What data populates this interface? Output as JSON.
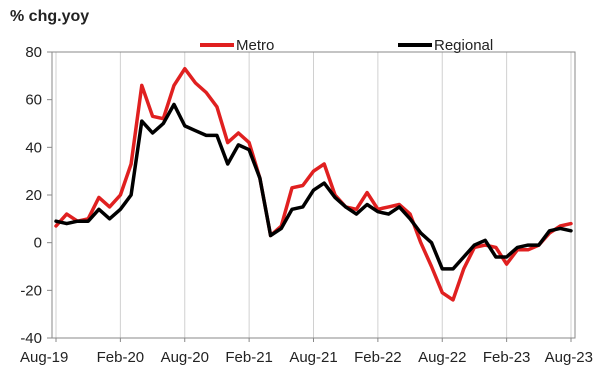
{
  "chart_data": {
    "type": "line",
    "ylabel": "% chg.yoy",
    "ylim": [
      -40,
      80
    ],
    "yticks": [
      -40,
      -20,
      0,
      20,
      40,
      60,
      80
    ],
    "xtick_labels": [
      "Aug-19",
      "Feb-20",
      "Aug-20",
      "Feb-21",
      "Aug-21",
      "Feb-22",
      "Aug-22",
      "Feb-23",
      "Aug-23"
    ],
    "x": [
      "2019-08",
      "2019-09",
      "2019-10",
      "2019-11",
      "2019-12",
      "2020-01",
      "2020-02",
      "2020-03",
      "2020-04",
      "2020-05",
      "2020-06",
      "2020-07",
      "2020-08",
      "2020-09",
      "2020-10",
      "2020-11",
      "2020-12",
      "2021-01",
      "2021-02",
      "2021-03",
      "2021-04",
      "2021-05",
      "2021-06",
      "2021-07",
      "2021-08",
      "2021-09",
      "2021-10",
      "2021-11",
      "2021-12",
      "2022-01",
      "2022-02",
      "2022-03",
      "2022-04",
      "2022-05",
      "2022-06",
      "2022-07",
      "2022-08",
      "2022-09",
      "2022-10",
      "2022-11",
      "2022-12",
      "2023-01",
      "2023-02",
      "2023-03",
      "2023-04",
      "2023-05",
      "2023-06",
      "2023-07",
      "2023-08"
    ],
    "grid": "vertical",
    "legend_position": "top",
    "series": [
      {
        "name": "Metro",
        "color": "#e02020",
        "values": [
          7,
          12,
          9,
          10,
          19,
          15,
          20,
          33,
          66,
          53,
          52,
          66,
          73,
          67,
          63,
          57,
          42,
          46,
          42,
          27,
          3,
          7,
          23,
          24,
          30,
          33,
          20,
          15,
          14,
          21,
          14,
          15,
          16,
          12,
          0,
          -10,
          -21,
          -24,
          -11,
          -2,
          -1,
          -2,
          -9,
          -3,
          -3,
          -1,
          4,
          7,
          8
        ]
      },
      {
        "name": "Regional",
        "color": "#000000",
        "values": [
          9,
          8,
          9,
          9,
          14,
          10,
          14,
          20,
          51,
          46,
          50,
          58,
          49,
          47,
          45,
          45,
          33,
          41,
          39,
          27,
          3,
          6,
          14,
          15,
          22,
          25,
          19,
          15,
          12,
          16,
          13,
          12,
          15,
          10,
          4,
          0,
          -11,
          -11,
          -6,
          -1,
          1,
          -6,
          -6,
          -2,
          -1,
          -1,
          5,
          6,
          5
        ]
      }
    ]
  }
}
